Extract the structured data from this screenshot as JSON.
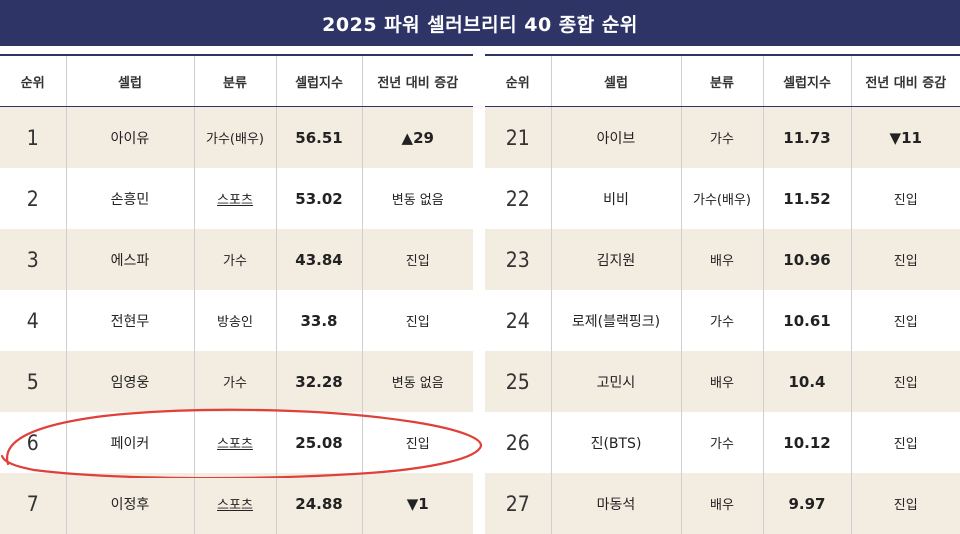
{
  "title": "2025 파워 셀러브리티 40 종합 순위",
  "headers": [
    "순위",
    "셀럽",
    "분류",
    "셀럽지수",
    "전년 대비 증감"
  ],
  "left_rows": [
    {
      "rank": "1",
      "name": "아이유",
      "category": "가수(배우)",
      "score": "56.51",
      "change": "▲29"
    },
    {
      "rank": "2",
      "name": "손흥민",
      "category": "스포츠",
      "score": "53.02",
      "change": "변동 없음"
    },
    {
      "rank": "3",
      "name": "에스파",
      "category": "가수",
      "score": "43.84",
      "change": "진입"
    },
    {
      "rank": "4",
      "name": "전현무",
      "category": "방송인",
      "score": "33.8",
      "change": "진입"
    },
    {
      "rank": "5",
      "name": "임영웅",
      "category": "가수",
      "score": "32.28",
      "change": "변동 없음"
    },
    {
      "rank": "6",
      "name": "페이커",
      "category": "스포츠",
      "score": "25.08",
      "change": "진입"
    },
    {
      "rank": "7",
      "name": "이정후",
      "category": "스포츠",
      "score": "24.88",
      "change": "▼1"
    }
  ],
  "right_rows": [
    {
      "rank": "21",
      "name": "아이브",
      "category": "가수",
      "score": "11.73",
      "change": "▼11"
    },
    {
      "rank": "22",
      "name": "비비",
      "category": "가수(배우)",
      "score": "11.52",
      "change": "진입"
    },
    {
      "rank": "23",
      "name": "김지원",
      "category": "배우",
      "score": "10.96",
      "change": "진입"
    },
    {
      "rank": "24",
      "name": "로제(블랙핑크)",
      "category": "가수",
      "score": "10.61",
      "change": "진입"
    },
    {
      "rank": "25",
      "name": "고민시",
      "category": "배우",
      "score": "10.4",
      "change": "진입"
    },
    {
      "rank": "26",
      "name": "진(BTS)",
      "category": "가수",
      "score": "10.12",
      "change": "진입"
    },
    {
      "rank": "27",
      "name": "마동석",
      "category": "배우",
      "score": "9.97",
      "change": "진입"
    }
  ],
  "colors": {
    "banner": "#2e3566",
    "stripe": "#f3ece1",
    "annotation": "#e0403a"
  }
}
